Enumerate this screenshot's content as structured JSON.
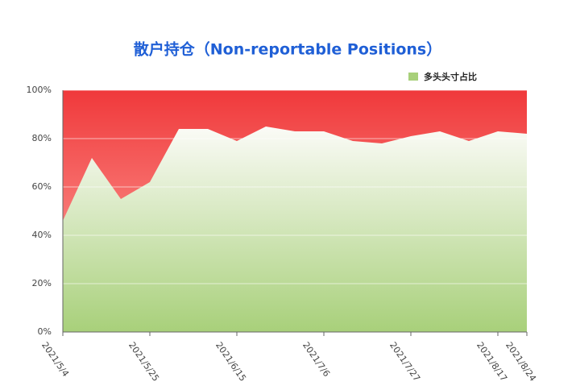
{
  "chart_data": {
    "type": "area",
    "title": "散户持仓（Non-reportable Positions）",
    "categories": [
      "2021/5/4",
      null,
      null,
      "2021/5/25",
      null,
      null,
      "2021/6/15",
      null,
      null,
      "2021/7/6",
      null,
      null,
      "2021/7/27",
      null,
      null,
      "2021/8/17",
      "2021/8/24"
    ],
    "series": [
      {
        "name": "多头头寸占比",
        "color": "#a8d07a",
        "values": [
          46,
          72,
          55,
          62,
          84,
          84,
          79,
          85,
          83,
          83,
          79,
          78,
          81,
          83,
          79,
          83,
          82
        ]
      }
    ],
    "ylim": [
      0,
      100
    ],
    "yticks": [
      {
        "value": 0,
        "label": "0%"
      },
      {
        "value": 20,
        "label": "20%"
      },
      {
        "value": 40,
        "label": "40%"
      },
      {
        "value": 60,
        "label": "60%"
      },
      {
        "value": 80,
        "label": "80%"
      },
      {
        "value": 100,
        "label": "100%"
      }
    ],
    "grid": true,
    "legend": "top-right"
  }
}
